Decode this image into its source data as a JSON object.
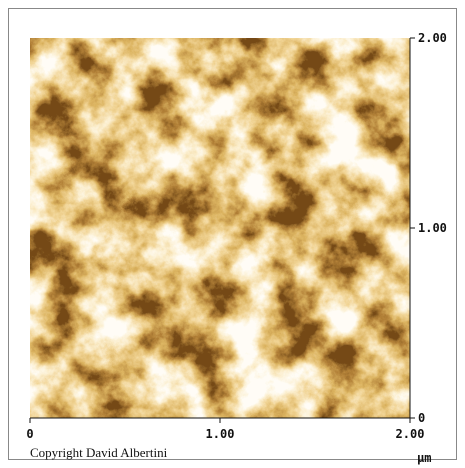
{
  "image": {
    "x_axis": {
      "range": [
        0,
        2
      ],
      "ticks": [
        0,
        {
          "value": 1,
          "label": "1.00"
        },
        {
          "value": 2,
          "label": "2.00"
        }
      ],
      "unit": "µm"
    },
    "y_axis": {
      "range": [
        0,
        2
      ],
      "ticks": [
        0,
        {
          "value": 1,
          "label": "1.00"
        },
        {
          "value": 2,
          "label": "2.00"
        }
      ]
    },
    "copyright": "Copyright David Albertini"
  }
}
